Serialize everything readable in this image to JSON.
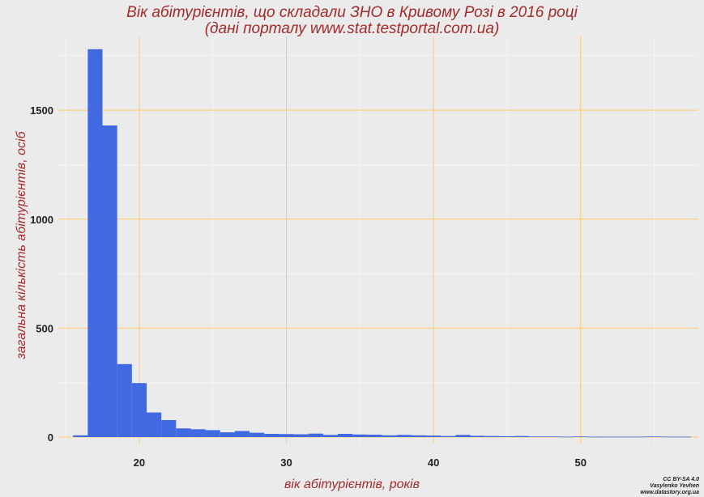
{
  "chart_data": {
    "type": "bar",
    "title": "Вік абітурієнтів, що складали ЗНО в Кривому Розі в 2016 році",
    "subtitle": "(дані порталу www.stat.testportal.com.ua)",
    "xlabel": "вік абітурієнтів, років",
    "ylabel": "загальна кількість абітурієнтів, осіб",
    "xlim": [
      14.5,
      58
    ],
    "ylim": [
      0,
      1820
    ],
    "xticks": [
      20,
      30,
      40,
      50
    ],
    "yticks": [
      0,
      500,
      1000,
      1500
    ],
    "grid": true,
    "bin_width": 1,
    "x": [
      16,
      17,
      18,
      19,
      20,
      21,
      22,
      23,
      24,
      25,
      26,
      27,
      28,
      29,
      30,
      31,
      32,
      33,
      34,
      35,
      36,
      37,
      38,
      39,
      40,
      41,
      42,
      43,
      44,
      45,
      46,
      47,
      48,
      49,
      50,
      51,
      52,
      53,
      54,
      55,
      56,
      57
    ],
    "values": [
      8,
      1780,
      1430,
      335,
      248,
      113,
      78,
      40,
      36,
      32,
      22,
      28,
      20,
      15,
      14,
      13,
      16,
      10,
      15,
      12,
      11,
      8,
      10,
      8,
      7,
      5,
      10,
      6,
      5,
      4,
      5,
      3,
      3,
      2,
      3,
      2,
      2,
      2,
      2,
      3,
      2,
      2
    ],
    "bar_color": "#4169e1",
    "grid_color": "#ffcc66"
  },
  "credit": {
    "line1": "CC BY-SA 4.0",
    "line2": "Vasylenko Yevhen",
    "line3": "www.datastory.org.ua"
  }
}
